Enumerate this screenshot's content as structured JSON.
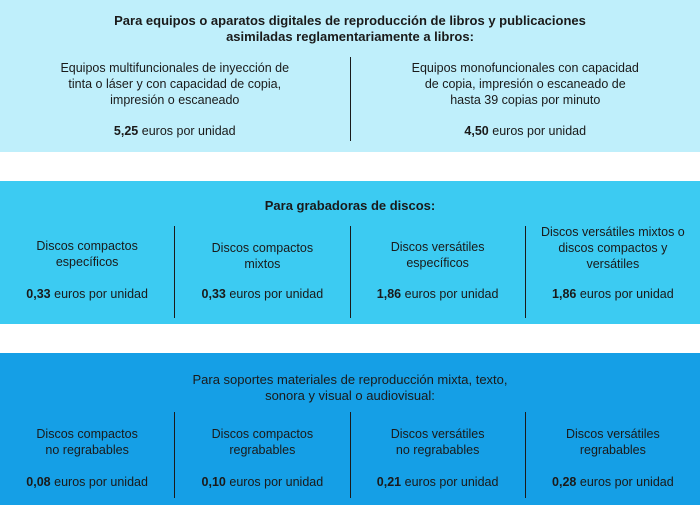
{
  "sections": [
    {
      "title_lines": [
        "Para equipos o aparatos digitales de reproducción de libros y publicaciones",
        "asimiladas reglamentariamente a libros:"
      ],
      "items": [
        {
          "desc_lines": [
            "Equipos multifuncionales de inyección de",
            "tinta o láser y con capacidad de copia,",
            "impresión o escaneado"
          ],
          "amount": "5,25",
          "unit": "euros por unidad"
        },
        {
          "desc_lines": [
            "Equipos monofuncionales con capacidad",
            "de copia, impresión o escaneado de",
            "hasta 39 copias por minuto"
          ],
          "amount": "4,50",
          "unit": "euros por unidad"
        }
      ]
    },
    {
      "title_lines": [
        "Para grabadoras de discos:"
      ],
      "items": [
        {
          "desc_lines": [
            "Discos compactos",
            "específicos"
          ],
          "amount": "0,33",
          "unit": "euros por unidad"
        },
        {
          "desc_lines": [
            "Discos compactos",
            "mixtos"
          ],
          "amount": "0,33",
          "unit": "euros por unidad"
        },
        {
          "desc_lines": [
            "Discos versátiles",
            "específicos"
          ],
          "amount": "1,86",
          "unit": "euros por unidad"
        },
        {
          "desc_lines": [
            "Discos versátiles mixtos o",
            "discos compactos y",
            "versátiles"
          ],
          "amount": "1,86",
          "unit": "euros por unidad"
        }
      ]
    },
    {
      "title_lines": [
        "Para soportes materiales de reproducción mixta, texto,",
        "sonora y visual o audiovisual:"
      ],
      "items": [
        {
          "desc_lines": [
            "Discos compactos",
            "no regrabables"
          ],
          "amount": "0,08",
          "unit": "euros por unidad"
        },
        {
          "desc_lines": [
            "Discos compactos",
            "regrabables"
          ],
          "amount": "0,10",
          "unit": "euros por unidad"
        },
        {
          "desc_lines": [
            "Discos versátiles",
            "no regrabables"
          ],
          "amount": "0,21",
          "unit": "euros por unidad"
        },
        {
          "desc_lines": [
            "Discos versátiles",
            "regrabables"
          ],
          "amount": "0,28",
          "unit": "euros por unidad"
        }
      ]
    }
  ],
  "colors": {
    "band1": "#bfeffb",
    "band2": "#3ccbf2",
    "band3": "#159fe6",
    "text": "#1a1a1a"
  }
}
